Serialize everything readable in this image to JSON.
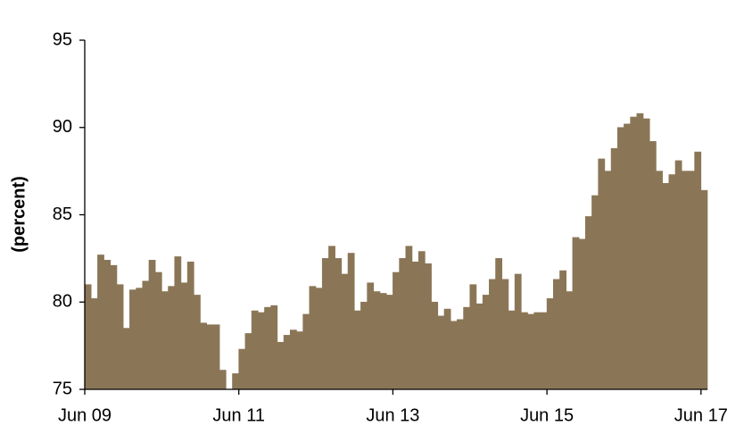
{
  "chart_data": {
    "type": "bar",
    "y_label": "(percent)",
    "color": "#8a7656",
    "ylim": [
      75,
      95
    ],
    "yticks": [
      75,
      80,
      85,
      90,
      95
    ],
    "categories": [
      "Jun 09",
      null,
      null,
      null,
      null,
      null,
      null,
      null,
      null,
      null,
      null,
      null,
      null,
      null,
      null,
      null,
      null,
      null,
      null,
      null,
      null,
      null,
      null,
      null,
      "Jun 11",
      null,
      null,
      null,
      null,
      null,
      null,
      null,
      null,
      null,
      null,
      null,
      null,
      null,
      null,
      null,
      null,
      null,
      null,
      null,
      null,
      null,
      null,
      null,
      "Jun 13",
      null,
      null,
      null,
      null,
      null,
      null,
      null,
      null,
      null,
      null,
      null,
      null,
      null,
      null,
      null,
      null,
      null,
      null,
      null,
      null,
      null,
      null,
      null,
      "Jun 15",
      null,
      null,
      null,
      null,
      null,
      null,
      null,
      null,
      null,
      null,
      null,
      null,
      null,
      null,
      null,
      null,
      null,
      null,
      null,
      null,
      null,
      null,
      null,
      "Jun 17"
    ],
    "values": [
      81.0,
      80.2,
      82.7,
      82.4,
      82.1,
      81.0,
      78.5,
      80.7,
      80.8,
      81.2,
      82.4,
      81.7,
      80.6,
      80.9,
      82.6,
      81.1,
      82.3,
      80.4,
      78.8,
      78.7,
      78.7,
      76.1,
      75.0,
      75.9,
      77.3,
      78.2,
      79.5,
      79.4,
      79.7,
      79.8,
      77.7,
      78.1,
      78.4,
      78.3,
      79.3,
      80.9,
      80.8,
      82.5,
      83.2,
      82.5,
      81.6,
      82.8,
      79.5,
      80.0,
      81.1,
      80.6,
      80.5,
      80.4,
      81.7,
      82.5,
      83.2,
      82.3,
      82.9,
      82.2,
      80.0,
      79.2,
      79.6,
      78.9,
      79.0,
      79.7,
      81.0,
      79.9,
      80.4,
      81.3,
      82.5,
      81.3,
      79.5,
      81.6,
      79.4,
      79.3,
      79.4,
      79.4,
      80.2,
      81.3,
      81.8,
      80.6,
      83.7,
      83.6,
      84.9,
      86.1,
      88.2,
      87.5,
      88.8,
      90.0,
      90.2,
      90.6,
      90.8,
      90.5,
      89.2,
      87.5,
      86.8,
      87.3,
      88.1,
      87.5,
      87.5,
      88.6,
      86.4
    ]
  }
}
